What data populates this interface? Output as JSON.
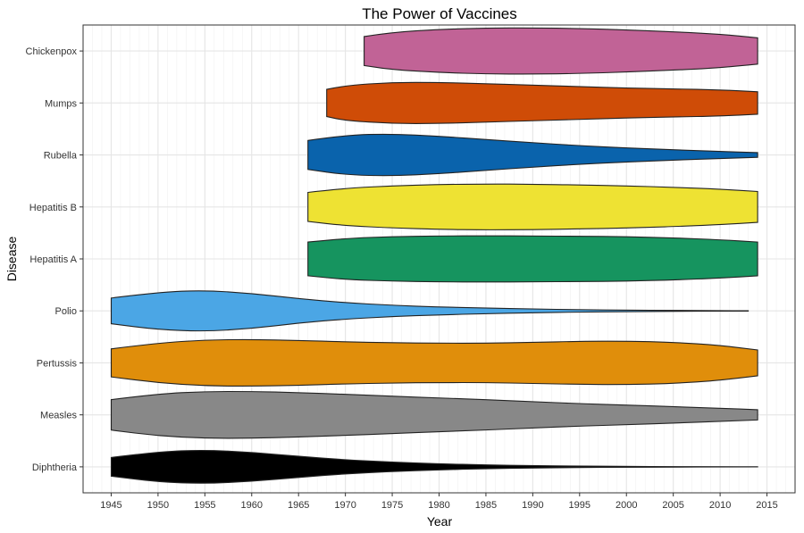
{
  "chart_data": {
    "type": "violin",
    "title": "The Power of Vaccines",
    "xlabel": "Year",
    "ylabel": "Disease",
    "xlim": [
      1942,
      2018
    ],
    "x_ticks": [
      1945,
      1950,
      1955,
      1960,
      1965,
      1970,
      1975,
      1980,
      1985,
      1990,
      1995,
      2000,
      2005,
      2010,
      2015
    ],
    "grid": true,
    "categories": [
      "Diphtheria",
      "Measles",
      "Pertussis",
      "Polio",
      "Hepatitis A",
      "Hepatitis B",
      "Rubella",
      "Mumps",
      "Chickenpox"
    ],
    "series": [
      {
        "category": "Diphtheria",
        "color": "#000000",
        "x_range": [
          1945,
          2014
        ],
        "profile": [
          [
            1945,
            0.4
          ],
          [
            1950,
            0.65
          ],
          [
            1955,
            0.72
          ],
          [
            1960,
            0.62
          ],
          [
            1965,
            0.45
          ],
          [
            1970,
            0.3
          ],
          [
            1975,
            0.2
          ],
          [
            1980,
            0.13
          ],
          [
            1985,
            0.08
          ],
          [
            1990,
            0.05
          ],
          [
            1995,
            0.03
          ],
          [
            2000,
            0.02
          ],
          [
            2005,
            0.01
          ],
          [
            2010,
            0.005
          ],
          [
            2014,
            0.003
          ]
        ]
      },
      {
        "category": "Measles",
        "color": "#888888",
        "x_range": [
          1945,
          2014
        ],
        "profile": [
          [
            1945,
            0.65
          ],
          [
            1950,
            0.9
          ],
          [
            1955,
            1.0
          ],
          [
            1960,
            1.0
          ],
          [
            1965,
            0.95
          ],
          [
            1970,
            0.88
          ],
          [
            1975,
            0.8
          ],
          [
            1980,
            0.72
          ],
          [
            1985,
            0.65
          ],
          [
            1990,
            0.56
          ],
          [
            1995,
            0.48
          ],
          [
            2000,
            0.42
          ],
          [
            2005,
            0.35
          ],
          [
            2010,
            0.28
          ],
          [
            2014,
            0.22
          ]
        ]
      },
      {
        "category": "Pertussis",
        "color": "#E08E0B",
        "x_range": [
          1945,
          2014
        ],
        "profile": [
          [
            1945,
            0.6
          ],
          [
            1950,
            0.85
          ],
          [
            1955,
            0.98
          ],
          [
            1960,
            1.0
          ],
          [
            1965,
            0.96
          ],
          [
            1970,
            0.9
          ],
          [
            1975,
            0.86
          ],
          [
            1980,
            0.84
          ],
          [
            1985,
            0.84
          ],
          [
            1990,
            0.88
          ],
          [
            1995,
            0.92
          ],
          [
            2000,
            0.93
          ],
          [
            2005,
            0.88
          ],
          [
            2010,
            0.75
          ],
          [
            2014,
            0.55
          ]
        ]
      },
      {
        "category": "Polio",
        "color": "#4BA6E5",
        "x_range": [
          1945,
          2013
        ],
        "profile": [
          [
            1945,
            0.55
          ],
          [
            1950,
            0.8
          ],
          [
            1955,
            0.88
          ],
          [
            1960,
            0.75
          ],
          [
            1965,
            0.52
          ],
          [
            1970,
            0.35
          ],
          [
            1975,
            0.24
          ],
          [
            1980,
            0.17
          ],
          [
            1985,
            0.12
          ],
          [
            1990,
            0.08
          ],
          [
            1995,
            0.05
          ],
          [
            2000,
            0.03
          ],
          [
            2005,
            0.02
          ],
          [
            2010,
            0.01
          ],
          [
            2013,
            0.005
          ]
        ]
      },
      {
        "category": "Hepatitis A",
        "color": "#16945F",
        "x_range": [
          1966,
          2014
        ],
        "profile": [
          [
            1966,
            0.72
          ],
          [
            1970,
            0.88
          ],
          [
            1975,
            0.95
          ],
          [
            1980,
            0.98
          ],
          [
            1985,
            0.99
          ],
          [
            1990,
            0.98
          ],
          [
            1995,
            0.97
          ],
          [
            2000,
            0.95
          ],
          [
            2005,
            0.9
          ],
          [
            2010,
            0.82
          ],
          [
            2014,
            0.72
          ]
        ]
      },
      {
        "category": "Hepatitis B",
        "color": "#EEE233",
        "x_range": [
          1966,
          2014
        ],
        "profile": [
          [
            1966,
            0.62
          ],
          [
            1970,
            0.8
          ],
          [
            1975,
            0.9
          ],
          [
            1980,
            0.96
          ],
          [
            1985,
            0.98
          ],
          [
            1990,
            0.97
          ],
          [
            1995,
            0.94
          ],
          [
            2000,
            0.9
          ],
          [
            2005,
            0.84
          ],
          [
            2010,
            0.76
          ],
          [
            2014,
            0.66
          ]
        ]
      },
      {
        "category": "Rubella",
        "color": "#0A63AC",
        "x_range": [
          1966,
          2014
        ],
        "profile": [
          [
            1966,
            0.62
          ],
          [
            1970,
            0.85
          ],
          [
            1975,
            0.9
          ],
          [
            1980,
            0.8
          ],
          [
            1985,
            0.66
          ],
          [
            1990,
            0.52
          ],
          [
            1995,
            0.4
          ],
          [
            2000,
            0.3
          ],
          [
            2005,
            0.22
          ],
          [
            2010,
            0.15
          ],
          [
            2014,
            0.1
          ]
        ]
      },
      {
        "category": "Mumps",
        "color": "#CF4C07",
        "x_range": [
          1968,
          2014
        ],
        "profile": [
          [
            1968,
            0.58
          ],
          [
            1970,
            0.75
          ],
          [
            1975,
            0.88
          ],
          [
            1980,
            0.88
          ],
          [
            1985,
            0.82
          ],
          [
            1990,
            0.76
          ],
          [
            1995,
            0.7
          ],
          [
            2000,
            0.64
          ],
          [
            2005,
            0.6
          ],
          [
            2010,
            0.56
          ],
          [
            2014,
            0.48
          ]
        ]
      },
      {
        "category": "Chickenpox",
        "color": "#C16396",
        "x_range": [
          1972,
          2014
        ],
        "profile": [
          [
            1972,
            0.62
          ],
          [
            1975,
            0.8
          ],
          [
            1980,
            0.92
          ],
          [
            1985,
            0.98
          ],
          [
            1990,
            0.99
          ],
          [
            1995,
            0.96
          ],
          [
            2000,
            0.9
          ],
          [
            2005,
            0.82
          ],
          [
            2010,
            0.72
          ],
          [
            2014,
            0.56
          ]
        ]
      }
    ]
  }
}
